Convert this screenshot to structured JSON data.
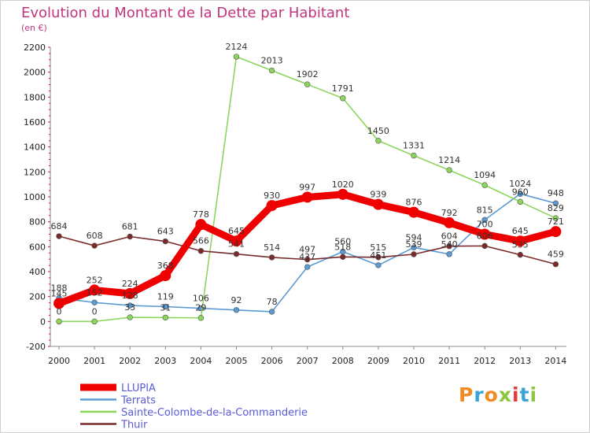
{
  "title": "Evolution du Montant de la Dette par Habitant",
  "subtitle": "(en €)",
  "brand": {
    "text": "Proxiti",
    "letter_colors": [
      "#f08a24",
      "#3aa3d8",
      "#f08a24",
      "#8cc63f",
      "#e7383e",
      "#3aa3d8",
      "#8cc63f"
    ]
  },
  "chart_data": {
    "type": "line",
    "title": "Evolution du Montant de la Dette par Habitant",
    "subtitle": "(en €)",
    "xlabel": "",
    "ylabel": "",
    "ylim": [
      -200,
      2200
    ],
    "yticks": [
      -200,
      0,
      200,
      400,
      600,
      800,
      1000,
      1200,
      1400,
      1600,
      1800,
      2000,
      2200
    ],
    "x": [
      "2000",
      "2001",
      "2002",
      "2003",
      "2004",
      "2005",
      "2006",
      "2007",
      "2008",
      "2009",
      "2010",
      "2011",
      "2012",
      "2013",
      "2014"
    ],
    "grid": false,
    "legend_position": "bottom-left",
    "series": [
      {
        "name": "LLUPIA",
        "color": "#ee0000",
        "values": [
          145,
          252,
          224,
          368,
          778,
          645,
          930,
          997,
          1020,
          939,
          876,
          792,
          700,
          645,
          721
        ]
      },
      {
        "name": "Terrats",
        "color": "#5b9bd5",
        "values": [
          188,
          152,
          128,
          119,
          106,
          92,
          78,
          437,
          560,
          451,
          594,
          540,
          815,
          1024,
          948
        ]
      },
      {
        "name": "Sainte-Colombe-de-la-Commanderie",
        "color": "#8cd65c",
        "values": [
          0,
          0,
          33,
          31,
          29,
          2124,
          2013,
          1902,
          1791,
          1450,
          1331,
          1214,
          1094,
          960,
          829
        ]
      },
      {
        "name": "Thuir",
        "color": "#7a2a2a",
        "values": [
          684,
          608,
          681,
          643,
          566,
          541,
          514,
          497,
          518,
          515,
          539,
          604,
          606,
          535,
          459
        ]
      }
    ],
    "labels": [
      [
        "145",
        "252",
        "224",
        "368",
        "778",
        "645",
        "930",
        "997",
        "1020",
        "939",
        "876",
        "792",
        "700",
        "645",
        "721"
      ],
      [
        "188",
        "152",
        "128",
        "119",
        "106",
        "92",
        "78",
        "437",
        "560",
        "451",
        "594",
        "540",
        "815",
        "1024",
        "948"
      ],
      [
        "0",
        "0",
        "33",
        "31",
        "29",
        "2124",
        "2013",
        "1902",
        "1791",
        "1450",
        "1331",
        "1214",
        "1094",
        "960",
        "829"
      ],
      [
        "684",
        "608",
        "681",
        "643",
        "566",
        "541",
        "514",
        "497",
        "518",
        "515",
        "539",
        "604",
        "606",
        "535",
        "459"
      ]
    ]
  }
}
